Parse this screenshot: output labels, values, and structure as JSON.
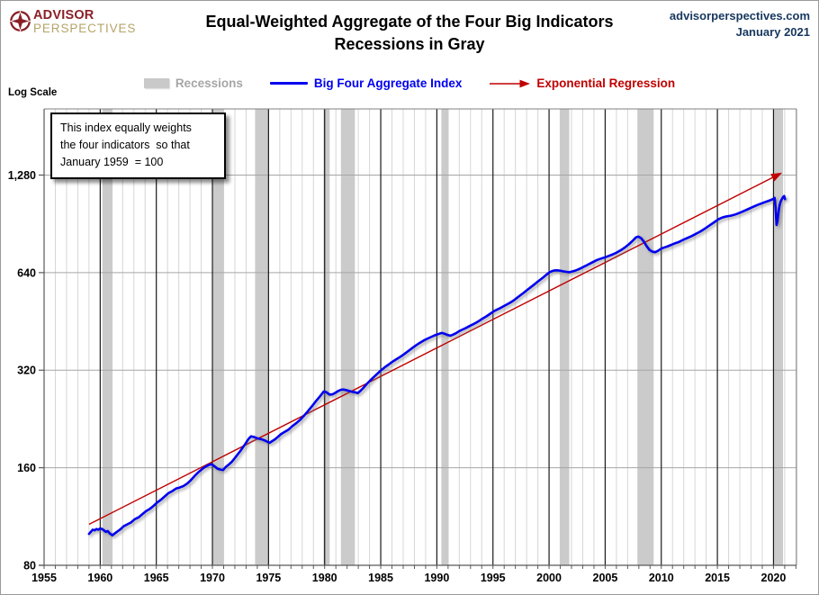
{
  "header": {
    "logo_line1": "ADVISOR",
    "logo_line2": "PERSPECTIVES",
    "site": "advisorperspectives.com",
    "date": "January 2021"
  },
  "legend": {
    "recessions": "Recessions",
    "aggregate": "Big Four Aggregate Index",
    "regression": "Exponential Regression"
  },
  "axis_note": "Log Scale",
  "colors": {
    "aggregate_line": "#0000f0",
    "regression_line": "#c00000",
    "recession_band": "#cbcbcb",
    "legend_recessions_text": "#a6a6a6",
    "site_text": "#17375e",
    "logo_red": "#8a2026",
    "logo_tan": "#b5a468",
    "minor_grid": "#d6d6d6",
    "major_grid": "#1a1a1a",
    "h_grid": "#a6a6a6"
  },
  "chart_data": {
    "type": "line",
    "title": "Equal-Weighted Aggregate of the Four Big Indicators",
    "subtitle": "Recessions in Gray",
    "annotation": {
      "line1": "This index equally weights",
      "line2": "the four indicators  so that",
      "line3": "January 1959  = 100"
    },
    "x_axis": {
      "tick_years": [
        1955,
        1960,
        1965,
        1970,
        1975,
        1980,
        1985,
        1990,
        1995,
        2000,
        2005,
        2010,
        2015,
        2020
      ],
      "range": [
        1955,
        2022.05
      ],
      "minor_gridline_step_years": 1
    },
    "y_axis": {
      "scale": "log2",
      "note": "Log Scale",
      "range": [
        80,
        2048
      ],
      "ticks": [
        {
          "value": 80,
          "label": "80"
        },
        {
          "value": 160,
          "label": "160"
        },
        {
          "value": 320,
          "label": "320"
        },
        {
          "value": 640,
          "label": "640"
        },
        {
          "value": 1280,
          "label": "1,280"
        }
      ]
    },
    "recessions_year_ranges": [
      [
        1960.2,
        1961.1
      ],
      [
        1970.05,
        1971.0
      ],
      [
        1973.8,
        1975.05
      ],
      [
        1979.9,
        1980.45
      ],
      [
        1981.45,
        1982.7
      ],
      [
        1990.4,
        1991.05
      ],
      [
        2000.95,
        2001.8
      ],
      [
        2007.87,
        2009.32
      ],
      [
        2020.0,
        2020.85
      ]
    ],
    "regression": {
      "name": "Exponential Regression",
      "start": [
        1959.0,
        107
      ],
      "end": [
        2020.55,
        1290
      ]
    },
    "series": {
      "name": "Big Four Aggregate Index",
      "points": [
        [
          1959.0,
          100
        ],
        [
          1959.17,
          101.5
        ],
        [
          1959.33,
          103
        ],
        [
          1959.5,
          102.5
        ],
        [
          1959.67,
          103.5
        ],
        [
          1959.83,
          103
        ],
        [
          1960.0,
          104
        ],
        [
          1960.17,
          103.5
        ],
        [
          1960.33,
          102.5
        ],
        [
          1960.5,
          101.5
        ],
        [
          1960.67,
          102
        ],
        [
          1960.83,
          100.5
        ],
        [
          1961.08,
          99
        ],
        [
          1961.33,
          100.5
        ],
        [
          1961.58,
          102
        ],
        [
          1961.83,
          103.5
        ],
        [
          1962.08,
          105.5
        ],
        [
          1962.42,
          107
        ],
        [
          1962.75,
          108.5
        ],
        [
          1963.08,
          111
        ],
        [
          1963.42,
          112.5
        ],
        [
          1963.75,
          115
        ],
        [
          1964.08,
          117.5
        ],
        [
          1964.42,
          119.5
        ],
        [
          1964.75,
          122
        ],
        [
          1965.08,
          125
        ],
        [
          1965.42,
          127.5
        ],
        [
          1965.75,
          130.5
        ],
        [
          1966.08,
          133.5
        ],
        [
          1966.42,
          135.5
        ],
        [
          1966.75,
          138
        ],
        [
          1967.08,
          139
        ],
        [
          1967.42,
          140.5
        ],
        [
          1967.75,
          143
        ],
        [
          1968.08,
          146.5
        ],
        [
          1968.42,
          151
        ],
        [
          1968.75,
          155
        ],
        [
          1969.08,
          158.5
        ],
        [
          1969.42,
          161.5
        ],
        [
          1969.75,
          163.5
        ],
        [
          1969.95,
          164
        ],
        [
          1970.2,
          161.5
        ],
        [
          1970.45,
          159
        ],
        [
          1970.7,
          158
        ],
        [
          1970.95,
          157.5
        ],
        [
          1971.2,
          161
        ],
        [
          1971.45,
          163.5
        ],
        [
          1971.7,
          166.5
        ],
        [
          1971.95,
          170.5
        ],
        [
          1972.2,
          175
        ],
        [
          1972.45,
          179.5
        ],
        [
          1972.7,
          184.5
        ],
        [
          1972.95,
          190
        ],
        [
          1973.2,
          196
        ],
        [
          1973.45,
          200
        ],
        [
          1973.7,
          199
        ],
        [
          1973.95,
          197.5
        ],
        [
          1974.2,
          196.5
        ],
        [
          1974.45,
          195.5
        ],
        [
          1974.7,
          194
        ],
        [
          1974.95,
          192
        ],
        [
          1975.1,
          191
        ],
        [
          1975.35,
          193.5
        ],
        [
          1975.6,
          196
        ],
        [
          1975.85,
          199.5
        ],
        [
          1976.1,
          203
        ],
        [
          1976.45,
          206.5
        ],
        [
          1976.8,
          210
        ],
        [
          1977.15,
          215.5
        ],
        [
          1977.5,
          220
        ],
        [
          1977.85,
          225.5
        ],
        [
          1978.2,
          232.5
        ],
        [
          1978.55,
          240
        ],
        [
          1978.9,
          248.5
        ],
        [
          1979.25,
          257.5
        ],
        [
          1979.6,
          266
        ],
        [
          1979.92,
          275
        ],
        [
          1980.17,
          273.5
        ],
        [
          1980.45,
          269
        ],
        [
          1980.7,
          269.5
        ],
        [
          1980.95,
          272.5
        ],
        [
          1981.2,
          276
        ],
        [
          1981.45,
          278.5
        ],
        [
          1981.7,
          279
        ],
        [
          1981.95,
          277.5
        ],
        [
          1982.2,
          276
        ],
        [
          1982.45,
          274.5
        ],
        [
          1982.7,
          273.5
        ],
        [
          1982.95,
          272
        ],
        [
          1983.2,
          276.5
        ],
        [
          1983.45,
          282
        ],
        [
          1983.7,
          288.5
        ],
        [
          1983.95,
          295
        ],
        [
          1984.3,
          303
        ],
        [
          1984.65,
          311
        ],
        [
          1985.0,
          319
        ],
        [
          1985.35,
          326.5
        ],
        [
          1985.7,
          333
        ],
        [
          1986.05,
          340
        ],
        [
          1986.4,
          346
        ],
        [
          1986.75,
          352
        ],
        [
          1987.1,
          359
        ],
        [
          1987.45,
          366.5
        ],
        [
          1987.8,
          374.5
        ],
        [
          1988.15,
          382
        ],
        [
          1988.5,
          389
        ],
        [
          1988.85,
          395.5
        ],
        [
          1989.2,
          401
        ],
        [
          1989.55,
          406
        ],
        [
          1989.9,
          411
        ],
        [
          1990.2,
          414.5
        ],
        [
          1990.45,
          417
        ],
        [
          1990.7,
          414.5
        ],
        [
          1990.95,
          411
        ],
        [
          1991.2,
          409
        ],
        [
          1991.45,
          412
        ],
        [
          1991.7,
          416
        ],
        [
          1992.0,
          422.5
        ],
        [
          1992.3,
          427.5
        ],
        [
          1992.6,
          432
        ],
        [
          1992.9,
          437.5
        ],
        [
          1993.2,
          443
        ],
        [
          1993.5,
          448.5
        ],
        [
          1993.8,
          455
        ],
        [
          1994.1,
          462.5
        ],
        [
          1994.4,
          469
        ],
        [
          1994.7,
          476.5
        ],
        [
          1995.0,
          484.5
        ],
        [
          1995.3,
          491
        ],
        [
          1995.6,
          496.5
        ],
        [
          1995.9,
          503
        ],
        [
          1996.2,
          509.5
        ],
        [
          1996.5,
          516
        ],
        [
          1996.8,
          524
        ],
        [
          1997.1,
          533.5
        ],
        [
          1997.4,
          543.5
        ],
        [
          1997.7,
          553.5
        ],
        [
          1998.0,
          564
        ],
        [
          1998.3,
          574.5
        ],
        [
          1998.6,
          585.5
        ],
        [
          1998.9,
          597
        ],
        [
          1999.2,
          608
        ],
        [
          1999.5,
          619.5
        ],
        [
          1999.8,
          632
        ],
        [
          2000.05,
          642
        ],
        [
          2000.3,
          647.5
        ],
        [
          2000.55,
          650.5
        ],
        [
          2000.8,
          650
        ],
        [
          2001.05,
          648
        ],
        [
          2001.3,
          645.5
        ],
        [
          2001.55,
          643.5
        ],
        [
          2001.8,
          641.5
        ],
        [
          2002.05,
          645
        ],
        [
          2002.3,
          648.5
        ],
        [
          2002.55,
          653.5
        ],
        [
          2002.8,
          659.5
        ],
        [
          2003.05,
          666
        ],
        [
          2003.3,
          672.5
        ],
        [
          2003.55,
          680
        ],
        [
          2003.8,
          687
        ],
        [
          2004.05,
          694
        ],
        [
          2004.3,
          700.5
        ],
        [
          2004.65,
          707.5
        ],
        [
          2005.0,
          714
        ],
        [
          2005.35,
          721
        ],
        [
          2005.7,
          729
        ],
        [
          2006.05,
          739
        ],
        [
          2006.4,
          751
        ],
        [
          2006.75,
          765
        ],
        [
          2007.1,
          782
        ],
        [
          2007.45,
          803
        ],
        [
          2007.75,
          822
        ],
        [
          2007.95,
          827
        ],
        [
          2008.2,
          818
        ],
        [
          2008.45,
          798
        ],
        [
          2008.7,
          772
        ],
        [
          2008.95,
          752
        ],
        [
          2009.2,
          743
        ],
        [
          2009.45,
          740
        ],
        [
          2009.7,
          747
        ],
        [
          2009.95,
          757
        ],
        [
          2010.2,
          764
        ],
        [
          2010.45,
          769
        ],
        [
          2010.7,
          774.5
        ],
        [
          2010.95,
          781
        ],
        [
          2011.2,
          787.5
        ],
        [
          2011.45,
          793
        ],
        [
          2011.7,
          800
        ],
        [
          2011.95,
          808
        ],
        [
          2012.2,
          815.5
        ],
        [
          2012.45,
          822
        ],
        [
          2012.7,
          829.5
        ],
        [
          2012.95,
          838
        ],
        [
          2013.2,
          847
        ],
        [
          2013.45,
          856
        ],
        [
          2013.7,
          866.5
        ],
        [
          2013.95,
          878
        ],
        [
          2014.2,
          890
        ],
        [
          2014.45,
          902
        ],
        [
          2014.7,
          915
        ],
        [
          2014.95,
          928
        ],
        [
          2015.2,
          939
        ],
        [
          2015.45,
          947
        ],
        [
          2015.7,
          952.5
        ],
        [
          2015.95,
          956
        ],
        [
          2016.2,
          959.5
        ],
        [
          2016.45,
          964
        ],
        [
          2016.7,
          970
        ],
        [
          2016.95,
          977.5
        ],
        [
          2017.2,
          986
        ],
        [
          2017.45,
          995
        ],
        [
          2017.7,
          1004
        ],
        [
          2017.95,
          1013
        ],
        [
          2018.2,
          1022
        ],
        [
          2018.45,
          1031
        ],
        [
          2018.7,
          1039
        ],
        [
          2018.95,
          1047
        ],
        [
          2019.2,
          1055
        ],
        [
          2019.45,
          1062.5
        ],
        [
          2019.7,
          1070
        ],
        [
          2019.95,
          1079
        ],
        [
          2020.1,
          1088
        ],
        [
          2020.18,
          1020
        ],
        [
          2020.27,
          898
        ],
        [
          2020.35,
          920
        ],
        [
          2020.45,
          988
        ],
        [
          2020.55,
          1035
        ],
        [
          2020.65,
          1062
        ],
        [
          2020.75,
          1080
        ],
        [
          2020.85,
          1094
        ],
        [
          2020.95,
          1103
        ],
        [
          2021.02,
          1079
        ]
      ]
    },
    "legend_position": "top",
    "grid": true
  }
}
